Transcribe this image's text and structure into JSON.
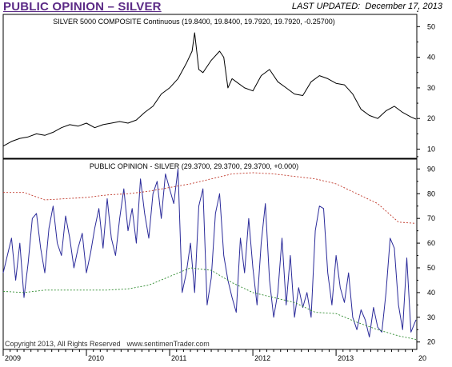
{
  "header": {
    "title": "PUBLIC OPINION – SILVER",
    "last_updated_label": "LAST UPDATED:",
    "last_updated_date": "December 17, 2013"
  },
  "footer": {
    "copyright": "Copyright 2013, All Rights Reserved",
    "site": "www.sentimenTrader.com"
  },
  "colors": {
    "title": "#5b2a86",
    "price_line": "#000000",
    "opinion_line": "#2b2b9a",
    "upper_band": "#c0392b",
    "lower_band": "#2e8b2e"
  },
  "chart_data": [
    {
      "type": "line",
      "title": "SILVER 5000 COMPOSITE Continuous (19.8400, 19.8400, 19.7920, 19.7920, -0.25700)",
      "ylim": [
        7,
        54
      ],
      "y_ticks": [
        10,
        20,
        30,
        40,
        50
      ],
      "xlim": [
        2009.0,
        2013.97
      ],
      "series": [
        {
          "name": "",
          "x": [
            2009.0,
            2009.1,
            2009.2,
            2009.3,
            2009.4,
            2009.5,
            2009.6,
            2009.7,
            2009.8,
            2009.9,
            2010.0,
            2010.1,
            2010.2,
            2010.3,
            2010.4,
            2010.5,
            2010.6,
            2010.7,
            2010.8,
            2010.9,
            2011.0,
            2011.1,
            2011.2,
            2011.27,
            2011.3,
            2011.35,
            2011.4,
            2011.5,
            2011.6,
            2011.65,
            2011.7,
            2011.75,
            2011.8,
            2011.9,
            2012.0,
            2012.1,
            2012.2,
            2012.3,
            2012.4,
            2012.5,
            2012.6,
            2012.7,
            2012.8,
            2012.9,
            2013.0,
            2013.1,
            2013.2,
            2013.3,
            2013.4,
            2013.5,
            2013.6,
            2013.7,
            2013.8,
            2013.9,
            2013.96
          ],
          "y": [
            11.0,
            12.5,
            13.5,
            14.0,
            15.0,
            14.5,
            15.5,
            17.0,
            18.0,
            17.5,
            18.5,
            17.0,
            18.0,
            18.5,
            19.0,
            18.5,
            19.5,
            22.0,
            24.0,
            28.0,
            30.0,
            33.0,
            38.0,
            42.0,
            48.0,
            36.0,
            35.0,
            39.0,
            42.0,
            40.0,
            30.0,
            33.0,
            32.0,
            30.0,
            29.0,
            34.0,
            36.0,
            32.0,
            30.0,
            28.0,
            27.5,
            32.0,
            34.0,
            33.0,
            31.5,
            31.0,
            28.0,
            23.0,
            21.0,
            20.0,
            22.5,
            24.0,
            22.0,
            20.5,
            19.8
          ]
        }
      ]
    },
    {
      "type": "line",
      "title": "PUBLIC OPINION - SILVER (29.3700, 29.3700, 29.3700, +0.000)",
      "ylim": [
        17,
        94
      ],
      "y_ticks": [
        20,
        30,
        40,
        50,
        60,
        70,
        80,
        90
      ],
      "xlim": [
        2009.0,
        2013.97
      ],
      "x_ticks": [
        "2009",
        "2010",
        "2011",
        "2012",
        "2013",
        "20"
      ],
      "x_tick_values": [
        2009.0,
        2010.0,
        2011.0,
        2012.0,
        2013.0,
        2013.97
      ],
      "series": [
        {
          "name": "",
          "x": [
            2009.0,
            2009.05,
            2009.1,
            2009.15,
            2009.2,
            2009.25,
            2009.3,
            2009.35,
            2009.4,
            2009.45,
            2009.5,
            2009.55,
            2009.6,
            2009.65,
            2009.7,
            2009.75,
            2009.8,
            2009.85,
            2009.9,
            2009.95,
            2010.0,
            2010.05,
            2010.1,
            2010.15,
            2010.2,
            2010.25,
            2010.3,
            2010.35,
            2010.4,
            2010.45,
            2010.5,
            2010.55,
            2010.6,
            2010.65,
            2010.7,
            2010.75,
            2010.8,
            2010.85,
            2010.9,
            2010.95,
            2011.0,
            2011.05,
            2011.1,
            2011.15,
            2011.2,
            2011.25,
            2011.3,
            2011.35,
            2011.4,
            2011.45,
            2011.5,
            2011.55,
            2011.6,
            2011.65,
            2011.7,
            2011.75,
            2011.8,
            2011.85,
            2011.9,
            2011.95,
            2012.0,
            2012.05,
            2012.1,
            2012.15,
            2012.2,
            2012.25,
            2012.3,
            2012.35,
            2012.4,
            2012.45,
            2012.5,
            2012.55,
            2012.6,
            2012.65,
            2012.7,
            2012.75,
            2012.8,
            2012.85,
            2012.9,
            2012.95,
            2013.0,
            2013.05,
            2013.1,
            2013.15,
            2013.2,
            2013.25,
            2013.3,
            2013.35,
            2013.4,
            2013.45,
            2013.5,
            2013.55,
            2013.6,
            2013.65,
            2013.7,
            2013.75,
            2013.8,
            2013.85,
            2013.9,
            2013.96
          ],
          "y": [
            48,
            55,
            62,
            45,
            60,
            38,
            52,
            70,
            72,
            58,
            48,
            66,
            75,
            60,
            55,
            71,
            62,
            50,
            58,
            64,
            48,
            56,
            66,
            74,
            58,
            78,
            62,
            55,
            70,
            82,
            65,
            74,
            60,
            86,
            72,
            62,
            80,
            85,
            70,
            88,
            82,
            76,
            90,
            40,
            48,
            60,
            40,
            75,
            82,
            35,
            46,
            72,
            80,
            55,
            45,
            38,
            32,
            62,
            48,
            70,
            50,
            35,
            60,
            76,
            45,
            30,
            40,
            62,
            35,
            55,
            30,
            42,
            34,
            40,
            30,
            65,
            75,
            74,
            48,
            35,
            55,
            42,
            36,
            48,
            30,
            25,
            33,
            29,
            22,
            34,
            26,
            24,
            40,
            62,
            58,
            35,
            25,
            54,
            24,
            29
          ]
        },
        {
          "name": "",
          "x": [
            2009.0,
            2009.25,
            2009.5,
            2009.75,
            2010.0,
            2010.25,
            2010.5,
            2010.75,
            2011.0,
            2011.25,
            2011.5,
            2011.75,
            2012.0,
            2012.25,
            2012.5,
            2012.75,
            2013.0,
            2013.25,
            2013.5,
            2013.75,
            2013.96
          ],
          "y": [
            80.5,
            80.5,
            77.5,
            78.0,
            78.5,
            79.5,
            80.0,
            81.0,
            82.5,
            84.0,
            86.0,
            88.0,
            88.5,
            88.0,
            87.0,
            86.0,
            84.0,
            80.0,
            76.0,
            68.5,
            68.0
          ]
        },
        {
          "name": "",
          "x": [
            2009.0,
            2009.25,
            2009.5,
            2009.75,
            2010.0,
            2010.25,
            2010.5,
            2010.75,
            2011.0,
            2011.25,
            2011.5,
            2011.75,
            2012.0,
            2012.25,
            2012.5,
            2012.75,
            2013.0,
            2013.25,
            2013.5,
            2013.75,
            2013.96
          ],
          "y": [
            40.5,
            40.0,
            41.0,
            41.0,
            41.0,
            41.0,
            41.5,
            43.0,
            46.5,
            50.0,
            49.0,
            44.0,
            40.0,
            38.0,
            36.0,
            32.0,
            31.5,
            28.0,
            25.0,
            22.5,
            21.0
          ]
        }
      ]
    }
  ]
}
